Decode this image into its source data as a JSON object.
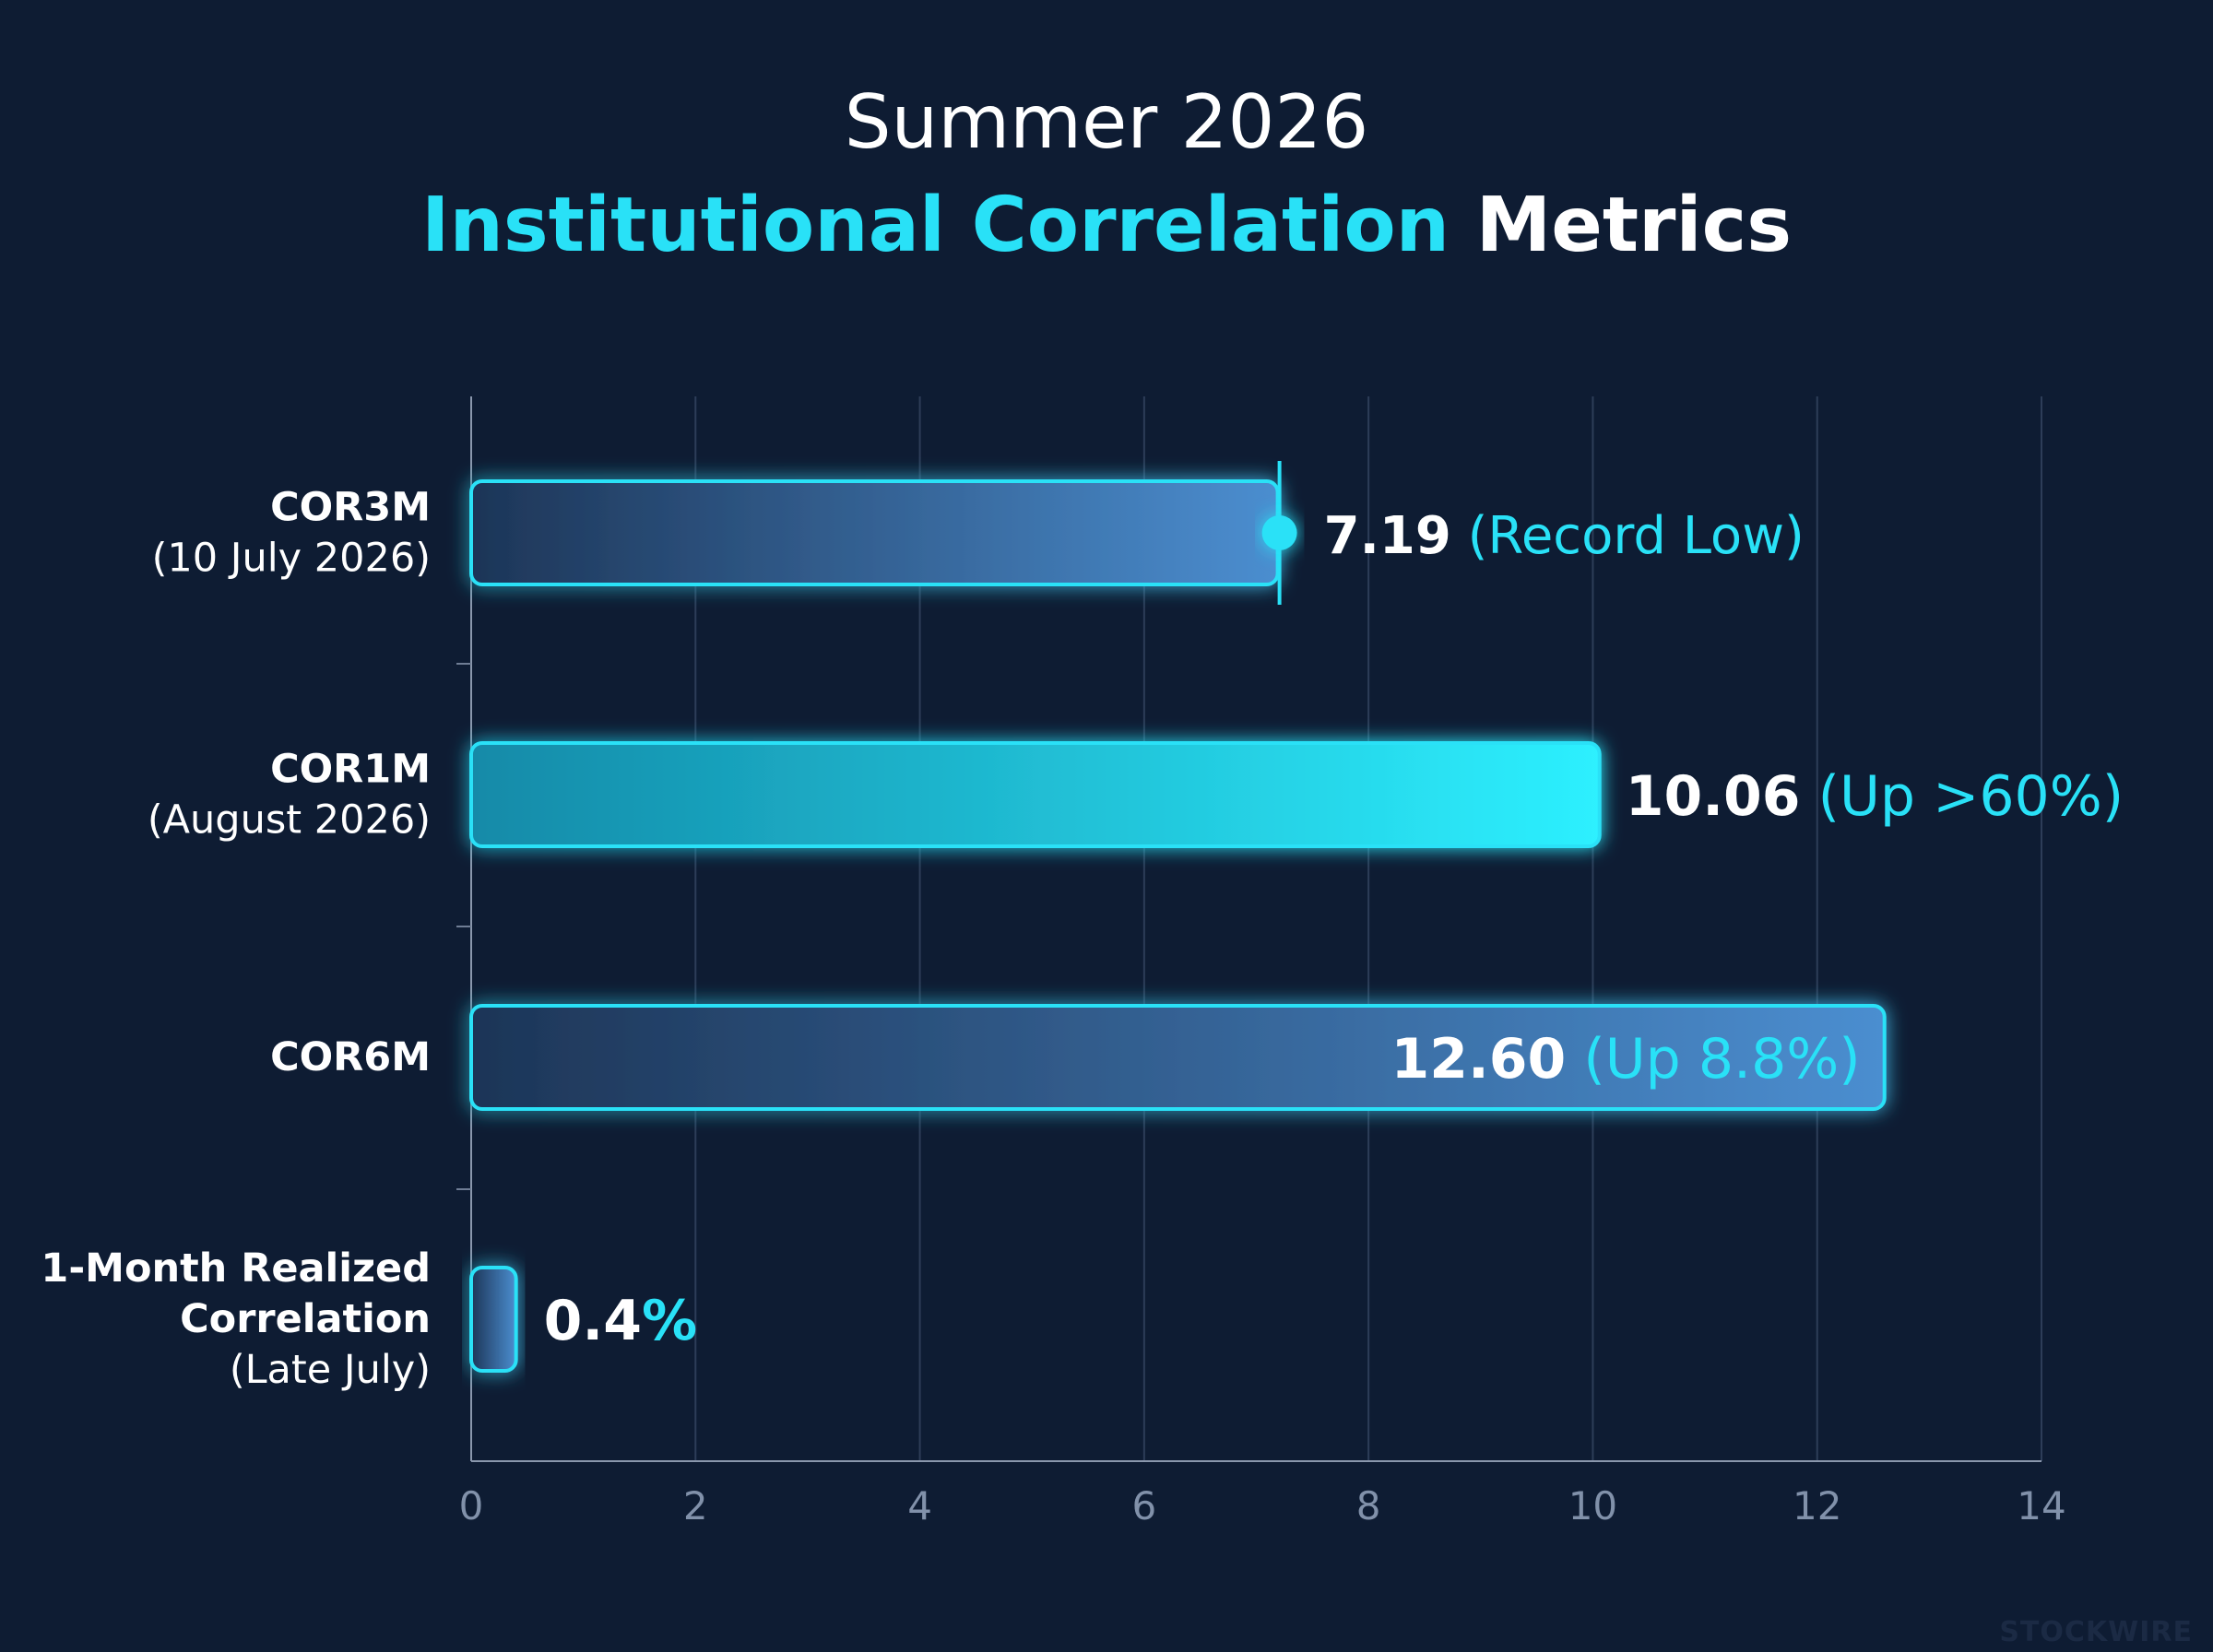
{
  "chart_data": {
    "type": "bar",
    "orientation": "horizontal",
    "title_line1": "Summer 2026",
    "title_line2_highlight": "Institutional Correlation",
    "title_line2_rest": "Metrics",
    "xlim": [
      0,
      14
    ],
    "x_ticks": [
      "0",
      "2",
      "4",
      "6",
      "8",
      "10",
      "12",
      "14"
    ],
    "grid": true,
    "categories": [
      {
        "name": "COR3M",
        "sub": [
          "(10 July 2026)"
        ],
        "value": 7.19,
        "value_label": "7.19",
        "note": "(Record Low)",
        "style": "marker"
      },
      {
        "name": "COR1M",
        "sub": [
          "(August 2026)"
        ],
        "value": 10.06,
        "value_label": "10.06",
        "note": "(Up >60%)",
        "style": "bright"
      },
      {
        "name": "COR6M",
        "sub": [],
        "value": 12.6,
        "value_label": "12.60",
        "note": "(Up 8.8%)",
        "style": "inside"
      },
      {
        "name": "1-Month Realized",
        "sub": [
          "Correlation",
          "(Late July)"
        ],
        "value": 0.4,
        "value_label": "0.4",
        "note": "%",
        "style": "small"
      }
    ],
    "colors": {
      "background": "#0e1c33",
      "accent": "#29e1f7",
      "bar_dark": "#1d3557",
      "bar_light": "#4b8ed0",
      "bright_start": "#138aa8",
      "bright_end": "#2df0ff",
      "text": "#ffffff",
      "tick": "#8191aa",
      "grid": "#2d3d58"
    }
  },
  "watermark": "STOCKWIRE"
}
